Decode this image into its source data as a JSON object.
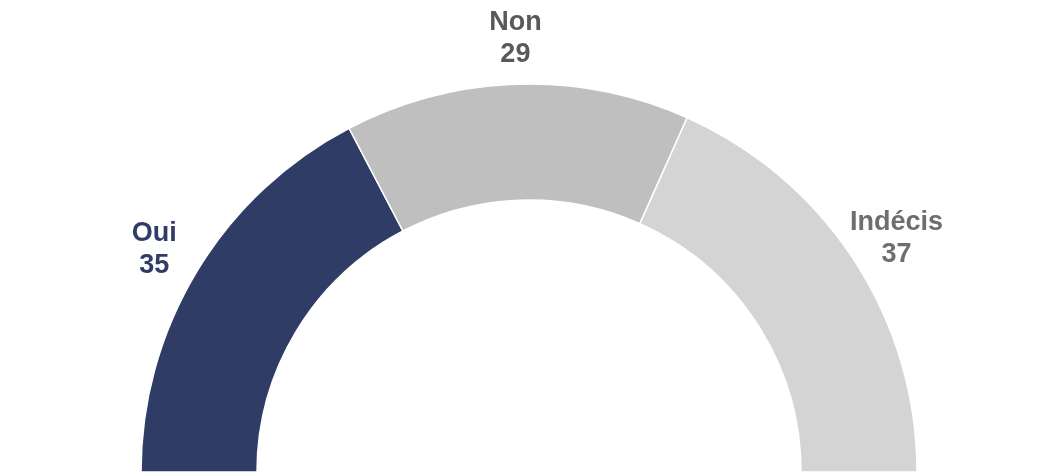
{
  "chart_data": {
    "type": "donut",
    "categories": [
      "Oui",
      "Non",
      "Indécis"
    ],
    "values": [
      35,
      29,
      37
    ],
    "colors": [
      "#2e3c66",
      "#bfbfbf",
      "#d4d4d4"
    ],
    "data_labels": true
  }
}
